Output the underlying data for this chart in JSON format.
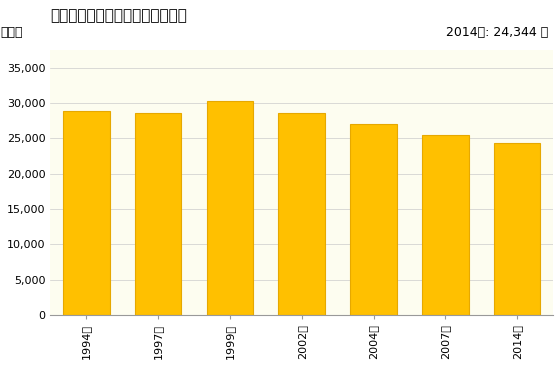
{
  "title": "機械器具小売業の従業者数の推移",
  "ylabel": "［人］",
  "annotation": "2014年: 24,344 人",
  "categories": [
    "1994年",
    "1997年",
    "1999年",
    "2002年",
    "2004年",
    "2007年",
    "2014年"
  ],
  "values": [
    28900,
    28500,
    30200,
    28500,
    27000,
    25500,
    24344
  ],
  "bar_color": "#FFC000",
  "bar_edge_color": "#E6A800",
  "ylim": [
    0,
    37500
  ],
  "yticks": [
    0,
    5000,
    10000,
    15000,
    20000,
    25000,
    30000,
    35000
  ],
  "background_color": "#FFFFFF",
  "plot_bg_color": "#FDFDF0",
  "title_fontsize": 11,
  "label_fontsize": 9,
  "tick_fontsize": 8,
  "annotation_fontsize": 9
}
